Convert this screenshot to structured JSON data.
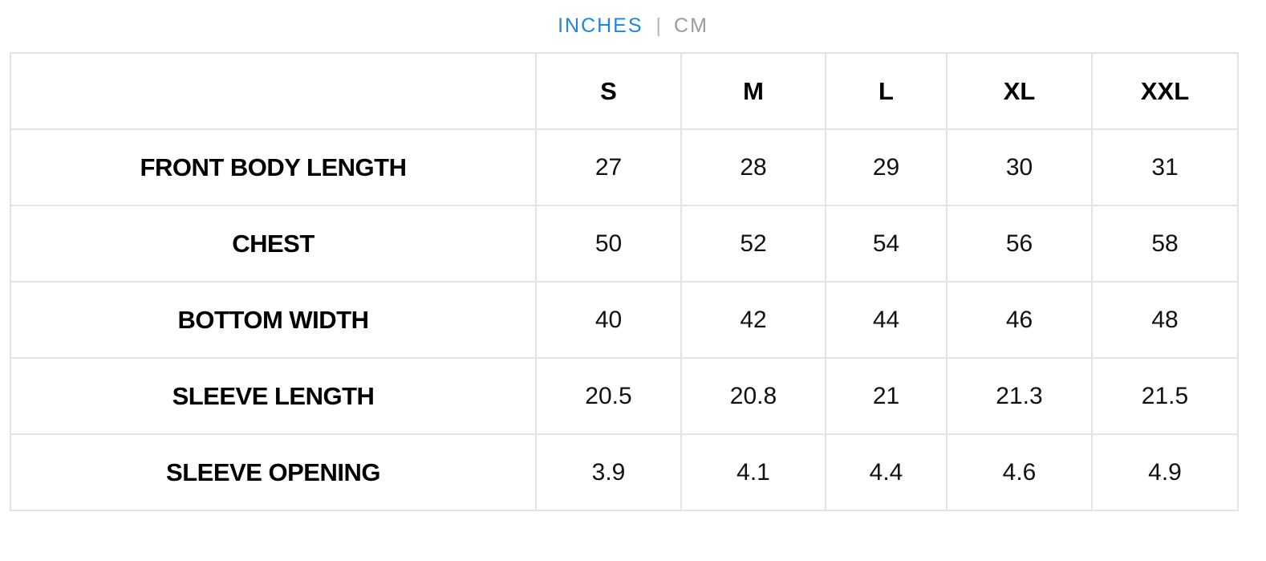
{
  "unit_toggle": {
    "inches_label": "INCHES",
    "separator": "|",
    "cm_label": "CM",
    "active_unit": "INCHES",
    "active_color": "#1f86e0",
    "inactive_color": "#9b9b9b"
  },
  "size_chart": {
    "corner_label": "",
    "sizes": [
      "S",
      "M",
      "L",
      "XL",
      "XXL"
    ],
    "rows": [
      {
        "label": "FRONT BODY LENGTH",
        "values": [
          "27",
          "28",
          "29",
          "30",
          "31"
        ]
      },
      {
        "label": "CHEST",
        "values": [
          "50",
          "52",
          "54",
          "56",
          "58"
        ]
      },
      {
        "label": "BOTTOM WIDTH",
        "values": [
          "40",
          "42",
          "44",
          "46",
          "48"
        ]
      },
      {
        "label": "SLEEVE LENGTH",
        "values": [
          "20.5",
          "20.8",
          "21",
          "21.3",
          "21.5"
        ]
      },
      {
        "label": "SLEEVE OPENING",
        "values": [
          "3.9",
          "4.1",
          "4.4",
          "4.6",
          "4.9"
        ]
      }
    ]
  }
}
